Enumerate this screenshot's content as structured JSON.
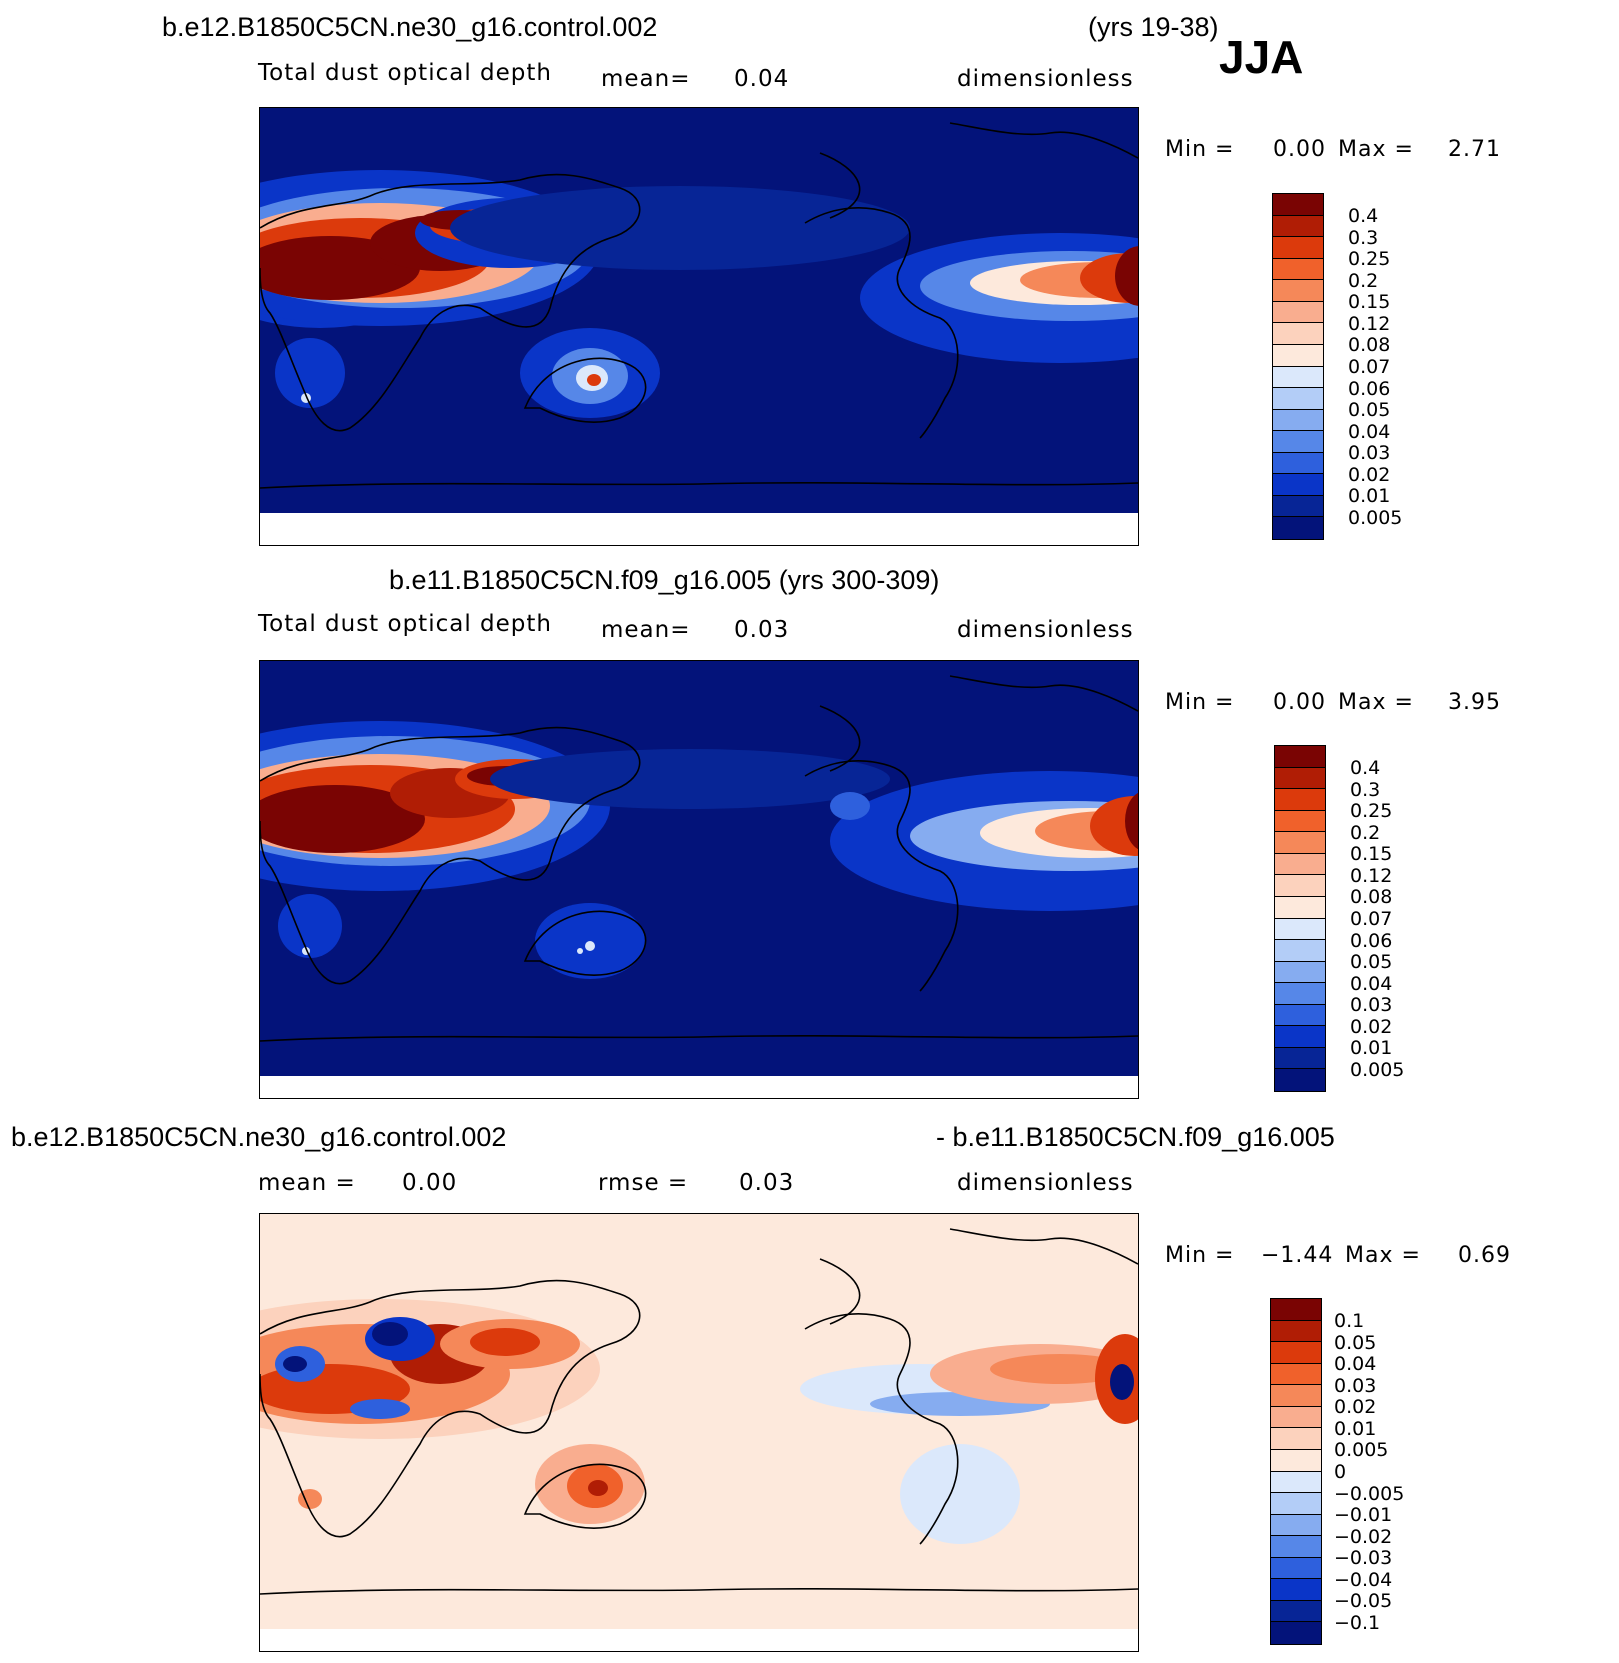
{
  "season": "JJA",
  "panel1": {
    "case_title": "b.e12.B1850C5CN.ne30_g16.control.002",
    "years": "(yrs 19-38)",
    "variable": "Total dust optical depth",
    "mean_label": "mean=",
    "mean_value": "0.04",
    "units": "dimensionless",
    "min_label": "Min =",
    "min_value": "0.00",
    "max_label": "Max =",
    "max_value": "2.71",
    "colorbar_labels": [
      "0.4",
      "0.3",
      "0.25",
      "0.2",
      "0.15",
      "0.12",
      "0.08",
      "0.07",
      "0.06",
      "0.05",
      "0.04",
      "0.03",
      "0.02",
      "0.01",
      "0.005"
    ]
  },
  "panel2": {
    "case_title": "b.e11.B1850C5CN.f09_g16.005 (yrs 300-309)",
    "variable": "Total dust optical depth",
    "mean_label": "mean=",
    "mean_value": "0.03",
    "units": "dimensionless",
    "min_label": "Min =",
    "min_value": "0.00",
    "max_label": "Max =",
    "max_value": "3.95",
    "colorbar_labels": [
      "0.4",
      "0.3",
      "0.25",
      "0.2",
      "0.15",
      "0.12",
      "0.08",
      "0.07",
      "0.06",
      "0.05",
      "0.04",
      "0.03",
      "0.02",
      "0.01",
      "0.005"
    ]
  },
  "panel3": {
    "case_title_left": "b.e12.B1850C5CN.ne30_g16.control.002",
    "case_title_right": "- b.e11.B1850C5CN.f09_g16.005",
    "mean_label": "mean =",
    "mean_value": "0.00",
    "rmse_label": "rmse =",
    "rmse_value": "0.03",
    "units": "dimensionless",
    "min_label": "Min =",
    "min_value": "−1.44",
    "max_label": "Max =",
    "max_value": "0.69",
    "colorbar_labels": [
      "0.1",
      "0.05",
      "0.04",
      "0.03",
      "0.02",
      "0.01",
      "0.005",
      "0",
      "−0.005",
      "−0.01",
      "−0.02",
      "−0.03",
      "−0.04",
      "−0.05",
      "−0.1"
    ]
  },
  "colors": {
    "abs_scale": [
      "#7a0403",
      "#b01d05",
      "#dc3a0c",
      "#f0612b",
      "#f58859",
      "#f9ad8f",
      "#fcd2bd",
      "#fde9dc",
      "#dbe8fb",
      "#b3cdf7",
      "#86acf0",
      "#5687e8",
      "#2e60dd",
      "#0a35c8",
      "#072596",
      "#03137a"
    ],
    "diff_scale": [
      "#7a0403",
      "#b01d05",
      "#dc3a0c",
      "#f0612b",
      "#f58859",
      "#f9ad8f",
      "#fcd2bd",
      "#fde9dc",
      "#dbe8fb",
      "#b3cdf7",
      "#86acf0",
      "#5687e8",
      "#2e60dd",
      "#0a35c8",
      "#072596",
      "#03137a"
    ]
  }
}
